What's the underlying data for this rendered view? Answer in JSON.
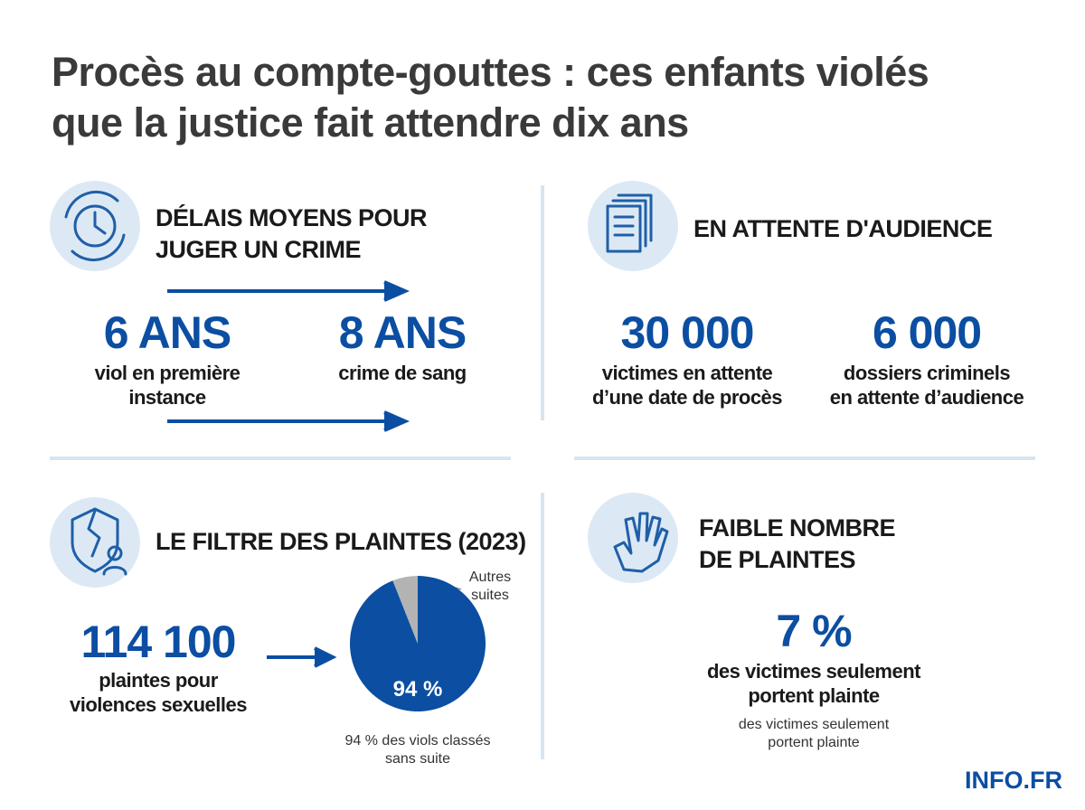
{
  "header": {
    "title": [
      "Procès au compte-gouttes : ces enfants violés",
      "que la justice fait attendre dix ans"
    ]
  },
  "sections": [
    {
      "heading": [
        "DÉLAIS MOYENS POUR",
        "JUGER UN CRIME"
      ],
      "stats": [
        {
          "value": "6 ANS",
          "label": [
            "viol en première",
            "instance"
          ]
        },
        {
          "value": "8 ANS",
          "label": [
            "crime de sang"
          ]
        }
      ]
    },
    {
      "heading": [
        "EN ATTENTE D'AUDIENCE"
      ],
      "stats": [
        {
          "value": "30 000",
          "label": [
            "victimes en attente",
            "d’une date de procès"
          ]
        },
        {
          "value": "6 000",
          "label": [
            "dossiers criminels",
            "en attente d’audience"
          ]
        }
      ]
    },
    {
      "heading": [
        "LE FILTRE DES PLAINTES (2023)"
      ],
      "stats": [
        {
          "value": "114 100",
          "label": [
            "plaintes pour",
            "violences sexuelles"
          ]
        }
      ]
    },
    {
      "heading": [
        "FAIBLE NOMBRE",
        "DE PLAINTES"
      ],
      "stats": [
        {
          "value": "7 %",
          "label": [
            "des victimes seulement",
            "portent plainte"
          ]
        }
      ],
      "note": [
        "des victimes seulement",
        "portent plainte"
      ]
    }
  ],
  "chart_data": {
    "type": "pie",
    "categories": [
      null,
      "Autres suites"
    ],
    "values": [
      94,
      6
    ],
    "value_labels": [
      "94 %",
      null
    ],
    "colors": [
      "#0b4ea2",
      "#b3b3b3"
    ],
    "caption": [
      "94 % des viols classés",
      "sans suite"
    ]
  },
  "footer": {
    "brand": "INFO.FR"
  }
}
